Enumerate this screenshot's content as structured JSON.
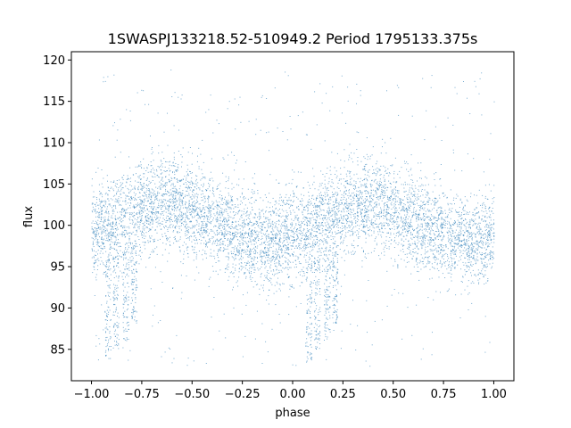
{
  "chart_data": {
    "type": "scatter",
    "title": "1SWASPJ133218.52-510949.2 Period 1795133.375s",
    "xlabel": "phase",
    "ylabel": "flux",
    "xlim": [
      -1.1,
      1.1
    ],
    "ylim": [
      81.2,
      121.0
    ],
    "xticks": [
      -1.0,
      -0.75,
      -0.5,
      -0.25,
      0.0,
      0.25,
      0.5,
      0.75,
      1.0
    ],
    "xtick_labels": [
      "−1.00",
      "−0.75",
      "−0.50",
      "−0.25",
      "0.00",
      "0.25",
      "0.50",
      "0.75",
      "1.00"
    ],
    "yticks": [
      85,
      90,
      95,
      100,
      105,
      110,
      115,
      120
    ],
    "ytick_labels": [
      "85",
      "90",
      "95",
      "100",
      "105",
      "110",
      "115",
      "120"
    ],
    "grid": false,
    "point_color": "#1f77b4",
    "light_curve": {
      "phase": [
        -1.0,
        -0.9,
        -0.8,
        -0.7,
        -0.6,
        -0.5,
        -0.4,
        -0.3,
        -0.2,
        -0.1,
        0.0,
        0.1,
        0.2,
        0.3,
        0.4,
        0.5,
        0.6,
        0.7,
        0.8,
        0.9,
        1.0
      ],
      "median_flux": [
        100.0,
        100.0,
        101.5,
        102.5,
        103.0,
        102.0,
        100.5,
        99.5,
        98.5,
        98.0,
        99.0,
        100.0,
        101.5,
        102.5,
        103.0,
        102.0,
        100.5,
        99.5,
        98.5,
        98.0,
        99.0
      ],
      "spread": 2.8
    },
    "dips": [
      {
        "phase": -0.92,
        "min_flux": 83.5
      },
      {
        "phase": -0.88,
        "min_flux": 85.0
      },
      {
        "phase": -0.83,
        "min_flux": 86.0
      },
      {
        "phase": -0.79,
        "min_flux": 88.0
      },
      {
        "phase": 0.08,
        "min_flux": 83.5
      },
      {
        "phase": 0.12,
        "min_flux": 85.0
      },
      {
        "phase": 0.17,
        "min_flux": 86.0
      },
      {
        "phase": 0.21,
        "min_flux": 88.0
      }
    ],
    "outlier_range": [
      83.0,
      119.0
    ]
  }
}
